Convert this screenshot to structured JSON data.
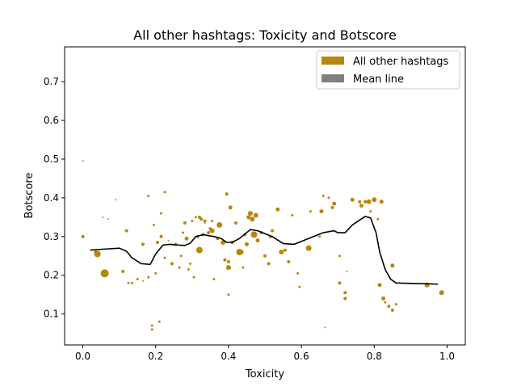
{
  "chart_data": {
    "type": "scatter",
    "title": "All other hashtags: Toxicity and Botscore",
    "xlabel": "Toxicity",
    "ylabel": "Botscore",
    "xlim": [
      -0.05,
      1.05
    ],
    "ylim": [
      0.02,
      0.79
    ],
    "xticks": [
      0.0,
      0.2,
      0.4,
      0.6,
      0.8,
      1.0
    ],
    "xtick_labels": [
      "0.0",
      "0.2",
      "0.4",
      "0.6",
      "0.8",
      "1.0"
    ],
    "yticks": [
      0.1,
      0.2,
      0.3,
      0.4,
      0.5,
      0.6,
      0.7
    ],
    "ytick_labels": [
      "0.1",
      "0.2",
      "0.3",
      "0.4",
      "0.5",
      "0.6",
      "0.7"
    ],
    "grid": false,
    "legend_position": "top-right",
    "colors": {
      "scatter": "#b8860b",
      "mean_line": "#000000",
      "mean_legend": "#808080"
    },
    "series": [
      {
        "name": "All other hashtags",
        "kind": "scatter",
        "points": [
          {
            "x": 0.0,
            "y": 0.495,
            "s": 1
          },
          {
            "x": 0.0,
            "y": 0.3,
            "s": 2
          },
          {
            "x": 0.035,
            "y": 0.26,
            "s": 2
          },
          {
            "x": 0.04,
            "y": 0.255,
            "s": 4
          },
          {
            "x": 0.06,
            "y": 0.205,
            "s": 5
          },
          {
            "x": 0.055,
            "y": 0.35,
            "s": 1
          },
          {
            "x": 0.07,
            "y": 0.345,
            "s": 1
          },
          {
            "x": 0.09,
            "y": 0.395,
            "s": 1
          },
          {
            "x": 0.11,
            "y": 0.21,
            "s": 2
          },
          {
            "x": 0.12,
            "y": 0.315,
            "s": 2
          },
          {
            "x": 0.125,
            "y": 0.18,
            "s": 1.5
          },
          {
            "x": 0.135,
            "y": 0.18,
            "s": 1.5
          },
          {
            "x": 0.15,
            "y": 0.19,
            "s": 1.5
          },
          {
            "x": 0.165,
            "y": 0.28,
            "s": 2
          },
          {
            "x": 0.165,
            "y": 0.185,
            "s": 1
          },
          {
            "x": 0.18,
            "y": 0.405,
            "s": 1.5
          },
          {
            "x": 0.18,
            "y": 0.195,
            "s": 1.5
          },
          {
            "x": 0.19,
            "y": 0.07,
            "s": 1.5
          },
          {
            "x": 0.19,
            "y": 0.06,
            "s": 1.5
          },
          {
            "x": 0.195,
            "y": 0.33,
            "s": 1.5
          },
          {
            "x": 0.2,
            "y": 0.205,
            "s": 1.5
          },
          {
            "x": 0.205,
            "y": 0.285,
            "s": 2
          },
          {
            "x": 0.21,
            "y": 0.08,
            "s": 1.5
          },
          {
            "x": 0.215,
            "y": 0.3,
            "s": 2
          },
          {
            "x": 0.215,
            "y": 0.36,
            "s": 1.5
          },
          {
            "x": 0.225,
            "y": 0.415,
            "s": 1.5
          },
          {
            "x": 0.225,
            "y": 0.245,
            "s": 1.5
          },
          {
            "x": 0.235,
            "y": 0.29,
            "s": 1
          },
          {
            "x": 0.245,
            "y": 0.23,
            "s": 2
          },
          {
            "x": 0.255,
            "y": 0.28,
            "s": 2
          },
          {
            "x": 0.265,
            "y": 0.22,
            "s": 1.5
          },
          {
            "x": 0.27,
            "y": 0.25,
            "s": 1.5
          },
          {
            "x": 0.275,
            "y": 0.31,
            "s": 1.5
          },
          {
            "x": 0.28,
            "y": 0.335,
            "s": 2
          },
          {
            "x": 0.285,
            "y": 0.295,
            "s": 2.5
          },
          {
            "x": 0.29,
            "y": 0.215,
            "s": 1.5
          },
          {
            "x": 0.295,
            "y": 0.23,
            "s": 1.5
          },
          {
            "x": 0.3,
            "y": 0.34,
            "s": 1.5
          },
          {
            "x": 0.305,
            "y": 0.195,
            "s": 1.5
          },
          {
            "x": 0.31,
            "y": 0.35,
            "s": 1.5
          },
          {
            "x": 0.315,
            "y": 0.3,
            "s": 2
          },
          {
            "x": 0.32,
            "y": 0.265,
            "s": 4
          },
          {
            "x": 0.32,
            "y": 0.35,
            "s": 2
          },
          {
            "x": 0.325,
            "y": 0.345,
            "s": 2
          },
          {
            "x": 0.33,
            "y": 0.305,
            "s": 2
          },
          {
            "x": 0.335,
            "y": 0.34,
            "s": 2
          },
          {
            "x": 0.335,
            "y": 0.335,
            "s": 1
          },
          {
            "x": 0.345,
            "y": 0.31,
            "s": 2
          },
          {
            "x": 0.35,
            "y": 0.32,
            "s": 2
          },
          {
            "x": 0.355,
            "y": 0.315,
            "s": 3
          },
          {
            "x": 0.355,
            "y": 0.34,
            "s": 1.5
          },
          {
            "x": 0.36,
            "y": 0.19,
            "s": 1.5
          },
          {
            "x": 0.37,
            "y": 0.295,
            "s": 2
          },
          {
            "x": 0.375,
            "y": 0.33,
            "s": 3.5
          },
          {
            "x": 0.385,
            "y": 0.285,
            "s": 3
          },
          {
            "x": 0.39,
            "y": 0.24,
            "s": 2
          },
          {
            "x": 0.395,
            "y": 0.41,
            "s": 2
          },
          {
            "x": 0.4,
            "y": 0.235,
            "s": 2
          },
          {
            "x": 0.4,
            "y": 0.22,
            "s": 3
          },
          {
            "x": 0.405,
            "y": 0.375,
            "s": 2.5
          },
          {
            "x": 0.4,
            "y": 0.15,
            "s": 1.5
          },
          {
            "x": 0.41,
            "y": 0.285,
            "s": 2
          },
          {
            "x": 0.42,
            "y": 0.335,
            "s": 2
          },
          {
            "x": 0.43,
            "y": 0.26,
            "s": 4
          },
          {
            "x": 0.435,
            "y": 0.26,
            "s": 3
          },
          {
            "x": 0.44,
            "y": 0.22,
            "s": 1.5
          },
          {
            "x": 0.445,
            "y": 0.305,
            "s": 2
          },
          {
            "x": 0.45,
            "y": 0.28,
            "s": 2.5
          },
          {
            "x": 0.455,
            "y": 0.35,
            "s": 2.5
          },
          {
            "x": 0.46,
            "y": 0.36,
            "s": 3
          },
          {
            "x": 0.465,
            "y": 0.345,
            "s": 3
          },
          {
            "x": 0.47,
            "y": 0.305,
            "s": 4
          },
          {
            "x": 0.475,
            "y": 0.355,
            "s": 3
          },
          {
            "x": 0.48,
            "y": 0.29,
            "s": 2.5
          },
          {
            "x": 0.49,
            "y": 0.31,
            "s": 2
          },
          {
            "x": 0.5,
            "y": 0.25,
            "s": 2
          },
          {
            "x": 0.51,
            "y": 0.23,
            "s": 2
          },
          {
            "x": 0.515,
            "y": 0.3,
            "s": 2
          },
          {
            "x": 0.52,
            "y": 0.315,
            "s": 2
          },
          {
            "x": 0.535,
            "y": 0.37,
            "s": 2.5
          },
          {
            "x": 0.545,
            "y": 0.26,
            "s": 3
          },
          {
            "x": 0.555,
            "y": 0.265,
            "s": 2
          },
          {
            "x": 0.565,
            "y": 0.235,
            "s": 2
          },
          {
            "x": 0.575,
            "y": 0.355,
            "s": 1.5
          },
          {
            "x": 0.59,
            "y": 0.205,
            "s": 1.5
          },
          {
            "x": 0.595,
            "y": 0.17,
            "s": 1.5
          },
          {
            "x": 0.62,
            "y": 0.27,
            "s": 3.5
          },
          {
            "x": 0.625,
            "y": 0.365,
            "s": 1.5
          },
          {
            "x": 0.65,
            "y": 0.3,
            "s": 1.5
          },
          {
            "x": 0.655,
            "y": 0.365,
            "s": 2.5
          },
          {
            "x": 0.66,
            "y": 0.405,
            "s": 1.5
          },
          {
            "x": 0.665,
            "y": 0.065,
            "s": 1
          },
          {
            "x": 0.675,
            "y": 0.4,
            "s": 1.5
          },
          {
            "x": 0.685,
            "y": 0.375,
            "s": 2
          },
          {
            "x": 0.69,
            "y": 0.385,
            "s": 2.5
          },
          {
            "x": 0.705,
            "y": 0.25,
            "s": 1.5
          },
          {
            "x": 0.705,
            "y": 0.18,
            "s": 2
          },
          {
            "x": 0.72,
            "y": 0.155,
            "s": 2
          },
          {
            "x": 0.72,
            "y": 0.14,
            "s": 2
          },
          {
            "x": 0.725,
            "y": 0.21,
            "s": 1
          },
          {
            "x": 0.74,
            "y": 0.395,
            "s": 2.5
          },
          {
            "x": 0.76,
            "y": 0.39,
            "s": 2
          },
          {
            "x": 0.765,
            "y": 0.38,
            "s": 2.5
          },
          {
            "x": 0.775,
            "y": 0.39,
            "s": 2
          },
          {
            "x": 0.785,
            "y": 0.39,
            "s": 3
          },
          {
            "x": 0.79,
            "y": 0.365,
            "s": 1.5
          },
          {
            "x": 0.8,
            "y": 0.395,
            "s": 3
          },
          {
            "x": 0.81,
            "y": 0.345,
            "s": 1.5
          },
          {
            "x": 0.815,
            "y": 0.175,
            "s": 2.5
          },
          {
            "x": 0.82,
            "y": 0.39,
            "s": 2.5
          },
          {
            "x": 0.825,
            "y": 0.14,
            "s": 2.5
          },
          {
            "x": 0.83,
            "y": 0.13,
            "s": 1.5
          },
          {
            "x": 0.84,
            "y": 0.12,
            "s": 2
          },
          {
            "x": 0.85,
            "y": 0.225,
            "s": 2.5
          },
          {
            "x": 0.85,
            "y": 0.11,
            "s": 2
          },
          {
            "x": 0.86,
            "y": 0.125,
            "s": 1.5
          },
          {
            "x": 0.945,
            "y": 0.175,
            "s": 3
          },
          {
            "x": 0.985,
            "y": 0.155,
            "s": 3
          }
        ]
      },
      {
        "name": "Mean line",
        "kind": "line",
        "points": [
          {
            "x": 0.02,
            "y": 0.265
          },
          {
            "x": 0.05,
            "y": 0.267
          },
          {
            "x": 0.1,
            "y": 0.27
          },
          {
            "x": 0.12,
            "y": 0.262
          },
          {
            "x": 0.135,
            "y": 0.245
          },
          {
            "x": 0.16,
            "y": 0.23
          },
          {
            "x": 0.185,
            "y": 0.228
          },
          {
            "x": 0.2,
            "y": 0.255
          },
          {
            "x": 0.22,
            "y": 0.278
          },
          {
            "x": 0.24,
            "y": 0.28
          },
          {
            "x": 0.26,
            "y": 0.278
          },
          {
            "x": 0.28,
            "y": 0.277
          },
          {
            "x": 0.295,
            "y": 0.283
          },
          {
            "x": 0.31,
            "y": 0.3
          },
          {
            "x": 0.33,
            "y": 0.305
          },
          {
            "x": 0.36,
            "y": 0.3
          },
          {
            "x": 0.38,
            "y": 0.295
          },
          {
            "x": 0.395,
            "y": 0.285
          },
          {
            "x": 0.41,
            "y": 0.285
          },
          {
            "x": 0.43,
            "y": 0.295
          },
          {
            "x": 0.46,
            "y": 0.318
          },
          {
            "x": 0.48,
            "y": 0.315
          },
          {
            "x": 0.52,
            "y": 0.3
          },
          {
            "x": 0.55,
            "y": 0.282
          },
          {
            "x": 0.58,
            "y": 0.28
          },
          {
            "x": 0.62,
            "y": 0.295
          },
          {
            "x": 0.66,
            "y": 0.31
          },
          {
            "x": 0.69,
            "y": 0.315
          },
          {
            "x": 0.7,
            "y": 0.31
          },
          {
            "x": 0.72,
            "y": 0.31
          },
          {
            "x": 0.74,
            "y": 0.33
          },
          {
            "x": 0.775,
            "y": 0.352
          },
          {
            "x": 0.79,
            "y": 0.348
          },
          {
            "x": 0.805,
            "y": 0.31
          },
          {
            "x": 0.815,
            "y": 0.26
          },
          {
            "x": 0.83,
            "y": 0.215
          },
          {
            "x": 0.845,
            "y": 0.19
          },
          {
            "x": 0.86,
            "y": 0.18
          },
          {
            "x": 0.9,
            "y": 0.179
          },
          {
            "x": 0.95,
            "y": 0.178
          },
          {
            "x": 0.975,
            "y": 0.177
          }
        ]
      }
    ]
  }
}
